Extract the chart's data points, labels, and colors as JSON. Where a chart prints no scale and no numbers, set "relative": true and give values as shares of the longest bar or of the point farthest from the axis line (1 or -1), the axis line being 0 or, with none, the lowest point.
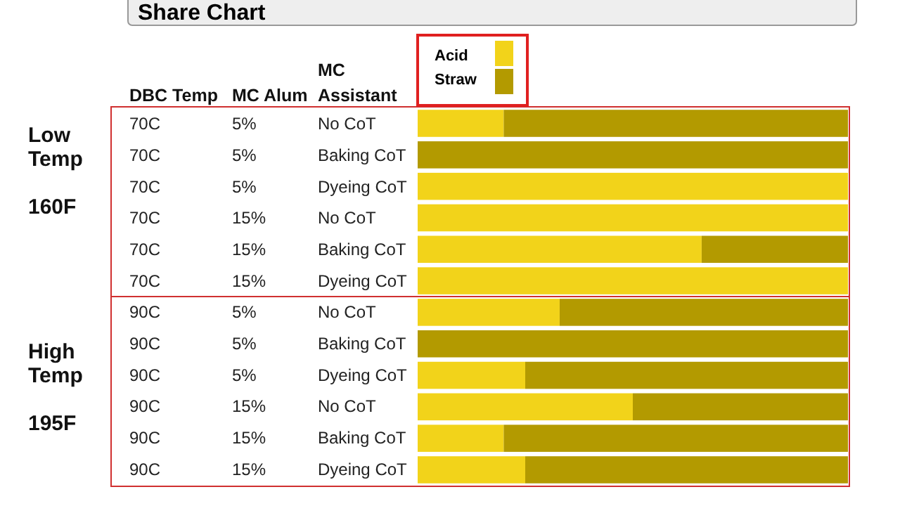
{
  "chart_data": {
    "type": "bar",
    "orientation": "horizontal",
    "stacked": true,
    "relative": true,
    "title": "Share Chart",
    "legend": "top left",
    "categories": [
      "70C\t5%\tNo CoT",
      "70C\t5%\tBaking CoT",
      "70C\t5%\tDyeing CoT",
      "70C\t15%\tNo CoT",
      "70C\t15%\tBaking CoT",
      "70C\t15%\tDyeing CoT",
      "90C\t5%\tNo CoT",
      "90C\t5%\tBaking CoT",
      "90C\t5%\tDyeing CoT",
      "90C\t15%\tNo CoT",
      "90C\t15%\tBaking CoT",
      "90C\t15%\tDyeing CoT"
    ],
    "series": [
      {
        "name": "Acid",
        "color": "#f2d31a",
        "values": [
          0.2,
          0,
          1,
          1,
          0.66,
          1,
          0.33,
          0,
          0.25,
          0.5,
          0.2,
          0.25
        ]
      },
      {
        "name": "Straw",
        "color": "#b39a00",
        "values": [
          0.8,
          1,
          0,
          0,
          0.34,
          0,
          0.67,
          1,
          0.75,
          0.5,
          0.8,
          0.75
        ]
      }
    ],
    "annotations": [
      "DBC Temp",
      "MC Alum",
      "MC\nAssistant",
      "Low\nTemp\n\n160F",
      "High\nTemp\n\n195F"
    ]
  }
}
